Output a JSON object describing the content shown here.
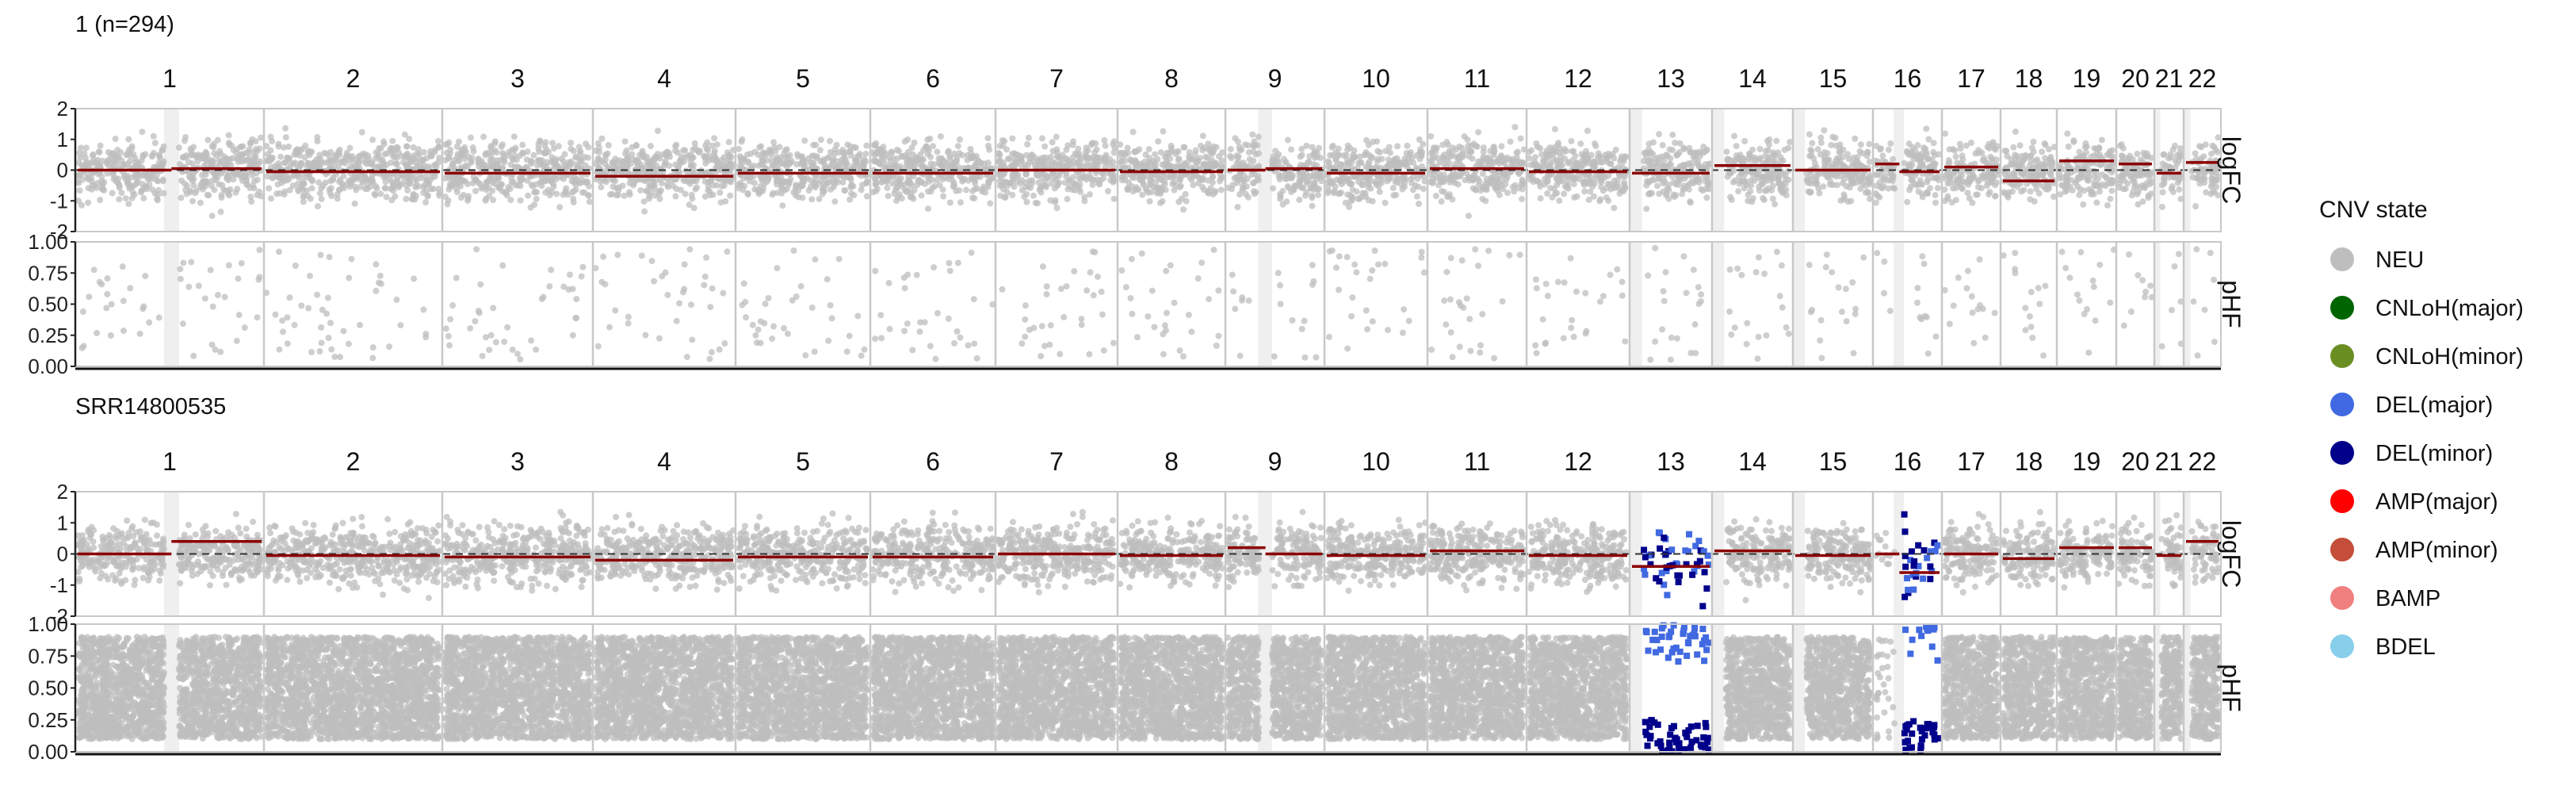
{
  "colors": {
    "NEU": "#BEBEBE",
    "CNLoH_major": "#006400",
    "CNLoH_minor": "#6B8E23",
    "DEL_major": "#4169E1",
    "DEL_minor": "#00008B",
    "AMP_major": "#FF0000",
    "AMP_minor": "#C44E3A",
    "BAMP": "#F08080",
    "BDEL": "#87CEEB",
    "segment": "#8B0000"
  },
  "legend": {
    "title": "CNV state",
    "items": [
      {
        "label": "NEU",
        "color": "#BEBEBE"
      },
      {
        "label": "CNLoH(major)",
        "color": "#006400"
      },
      {
        "label": "CNLoH(minor)",
        "color": "#6B8E23"
      },
      {
        "label": "DEL(major)",
        "color": "#4169E1"
      },
      {
        "label": "DEL(minor)",
        "color": "#00008B"
      },
      {
        "label": "AMP(major)",
        "color": "#FF0000"
      },
      {
        "label": "AMP(minor)",
        "color": "#C44E3A"
      },
      {
        "label": "BAMP",
        "color": "#F08080"
      },
      {
        "label": "BDEL",
        "color": "#87CEEB"
      }
    ]
  },
  "chart_data": [
    {
      "type": "scatter",
      "title": "1 (n=294)",
      "chromosomes": [
        "1",
        "2",
        "3",
        "4",
        "5",
        "6",
        "7",
        "8",
        "9",
        "10",
        "11",
        "12",
        "13",
        "14",
        "15",
        "16",
        "17",
        "18",
        "19",
        "20",
        "21",
        "22"
      ],
      "panels": [
        {
          "ylabel": "logFC",
          "ylim": [
            -2,
            2
          ],
          "ticks": [
            "-2",
            "-1",
            "0",
            "1",
            "2"
          ],
          "tick_values": [
            -2,
            -1,
            0,
            1,
            2
          ]
        },
        {
          "ylabel": "pHF",
          "ylim": [
            0,
            1
          ],
          "ticks": [
            "0.00",
            "0.25",
            "0.50",
            "0.75",
            "1.00"
          ],
          "tick_values": [
            0,
            0.25,
            0.5,
            0.75,
            1
          ]
        }
      ],
      "segment_means_logFC": [
        {
          "chr": "1",
          "segments": [
            0.0,
            0.05
          ]
        },
        {
          "chr": "2",
          "segments": [
            -0.05
          ]
        },
        {
          "chr": "3",
          "segments": [
            -0.1
          ]
        },
        {
          "chr": "4",
          "segments": [
            -0.2
          ]
        },
        {
          "chr": "5",
          "segments": [
            -0.1
          ]
        },
        {
          "chr": "6",
          "segments": [
            -0.1
          ]
        },
        {
          "chr": "7",
          "segments": [
            0.0
          ]
        },
        {
          "chr": "8",
          "segments": [
            -0.05
          ]
        },
        {
          "chr": "9",
          "segments": [
            0.0,
            0.05
          ]
        },
        {
          "chr": "10",
          "segments": [
            -0.1
          ]
        },
        {
          "chr": "11",
          "segments": [
            0.05
          ]
        },
        {
          "chr": "12",
          "segments": [
            -0.05
          ]
        },
        {
          "chr": "13",
          "segments": [
            -0.1
          ]
        },
        {
          "chr": "14",
          "segments": [
            0.15
          ]
        },
        {
          "chr": "15",
          "segments": [
            0.0
          ]
        },
        {
          "chr": "16",
          "segments": [
            0.2,
            -0.05
          ]
        },
        {
          "chr": "17",
          "segments": [
            0.1
          ]
        },
        {
          "chr": "18",
          "segments": [
            -0.35
          ]
        },
        {
          "chr": "19",
          "segments": [
            0.3
          ]
        },
        {
          "chr": "20",
          "segments": [
            0.2
          ]
        },
        {
          "chr": "21",
          "segments": [
            -0.1
          ]
        },
        {
          "chr": "22",
          "segments": [
            0.25
          ]
        }
      ],
      "state": "all NEU",
      "phf_density": "sparse"
    },
    {
      "type": "scatter",
      "title": "SRR14800535",
      "chromosomes": [
        "1",
        "2",
        "3",
        "4",
        "5",
        "6",
        "7",
        "8",
        "9",
        "10",
        "11",
        "12",
        "13",
        "14",
        "15",
        "16",
        "17",
        "18",
        "19",
        "20",
        "21",
        "22"
      ],
      "panels": [
        {
          "ylabel": "logFC",
          "ylim": [
            -2,
            2
          ],
          "ticks": [
            "-2",
            "-1",
            "0",
            "1",
            "2"
          ],
          "tick_values": [
            -2,
            -1,
            0,
            1,
            2
          ]
        },
        {
          "ylabel": "pHF",
          "ylim": [
            0,
            1
          ],
          "ticks": [
            "0.00",
            "0.25",
            "0.50",
            "0.75",
            "1.00"
          ],
          "tick_values": [
            0,
            0.25,
            0.5,
            0.75,
            1
          ]
        }
      ],
      "segment_means_logFC": [
        {
          "chr": "1",
          "segments": [
            0.0,
            0.4
          ]
        },
        {
          "chr": "2",
          "segments": [
            -0.05
          ]
        },
        {
          "chr": "3",
          "segments": [
            -0.1
          ]
        },
        {
          "chr": "4",
          "segments": [
            -0.2
          ]
        },
        {
          "chr": "5",
          "segments": [
            -0.1
          ]
        },
        {
          "chr": "6",
          "segments": [
            -0.1
          ]
        },
        {
          "chr": "7",
          "segments": [
            0.0
          ]
        },
        {
          "chr": "8",
          "segments": [
            -0.05
          ]
        },
        {
          "chr": "9",
          "segments": [
            0.2,
            0.0
          ]
        },
        {
          "chr": "10",
          "segments": [
            -0.05
          ]
        },
        {
          "chr": "11",
          "segments": [
            0.1
          ]
        },
        {
          "chr": "12",
          "segments": [
            -0.05
          ]
        },
        {
          "chr": "13",
          "segments": [
            -0.4
          ]
        },
        {
          "chr": "14",
          "segments": [
            0.1
          ]
        },
        {
          "chr": "15",
          "segments": [
            -0.05
          ]
        },
        {
          "chr": "16",
          "segments": [
            0.0,
            -0.6
          ]
        },
        {
          "chr": "17",
          "segments": [
            0.0
          ]
        },
        {
          "chr": "18",
          "segments": [
            -0.15
          ]
        },
        {
          "chr": "19",
          "segments": [
            0.2
          ]
        },
        {
          "chr": "20",
          "segments": [
            0.2
          ]
        },
        {
          "chr": "21",
          "segments": [
            -0.05
          ]
        },
        {
          "chr": "22",
          "segments": [
            0.4
          ]
        }
      ],
      "deletions": [
        {
          "chr": "13",
          "state": "DEL(major) / DEL(minor)"
        },
        {
          "chr": "16",
          "state": "DEL(major) / DEL(minor)"
        }
      ],
      "phf_density": "dense"
    }
  ]
}
